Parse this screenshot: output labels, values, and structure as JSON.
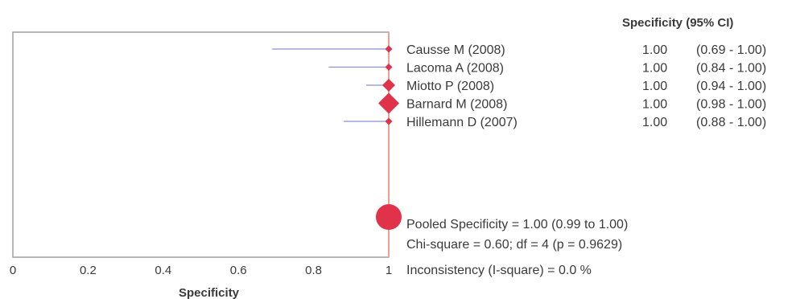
{
  "chart_data": {
    "type": "forest",
    "header": "Specificity (95% CI)",
    "xlabel": "Specificity",
    "xlim": [
      0,
      1
    ],
    "xticks": [
      "0",
      "0.2",
      "0.4",
      "0.6",
      "0.8",
      "1"
    ],
    "studies": [
      {
        "label": "Causse M (2008)",
        "value": 1.0,
        "lower": 0.69,
        "upper": 1.0,
        "value_text": "1.00",
        "ci_text": "(0.69 - 1.00)",
        "weight": "small"
      },
      {
        "label": "Lacoma A  (2008)",
        "value": 1.0,
        "lower": 0.84,
        "upper": 1.0,
        "value_text": "1.00",
        "ci_text": "(0.84 - 1.00)",
        "weight": "small"
      },
      {
        "label": "Miotto P (2008)",
        "value": 1.0,
        "lower": 0.94,
        "upper": 1.0,
        "value_text": "1.00",
        "ci_text": "(0.94 - 1.00)",
        "weight": "medium"
      },
      {
        "label": "Barnard M (2008)",
        "value": 1.0,
        "lower": 0.98,
        "upper": 1.0,
        "value_text": "1.00",
        "ci_text": "(0.98 - 1.00)",
        "weight": "large"
      },
      {
        "label": "Hillemann D (2007)",
        "value": 1.0,
        "lower": 0.88,
        "upper": 1.0,
        "value_text": "1.00",
        "ci_text": "(0.88 - 1.00)",
        "weight": "small"
      }
    ],
    "pooled": {
      "value": 1.0,
      "lower": 0.99,
      "upper": 1.0
    },
    "summary": [
      "Pooled Specificity = 1.00 (0.99 to 1.00)",
      "Chi-square = 0.60; df =  4 (p = 0.9629)",
      "Inconsistency (I-square) = 0.0 %"
    ],
    "colors": {
      "marker": "#e0334a",
      "ci_line": "#8b8fd6",
      "ref_line": "#f0a090",
      "frame": "#888888",
      "text": "#3a3a3a"
    }
  }
}
